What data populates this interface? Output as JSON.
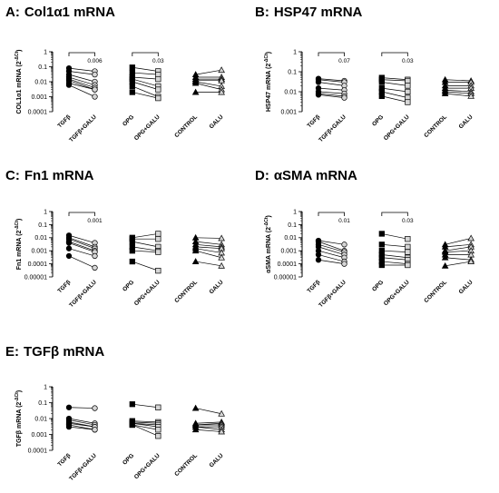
{
  "chart_data": [
    {
      "type": "scatter",
      "letter": "A:",
      "title": "Col1α1 mRNA",
      "ylabel": "COL1α1 mRNA (2^-ΔCt)",
      "ylabel_main": "COL1α1 mRNA (2",
      "ylabel_sup": "-ΔCt",
      "ylabel_tail": ")",
      "yscale": "log",
      "ylim": [
        0.0001,
        1
      ],
      "yticks": [
        {
          "value": 1,
          "label": "1"
        },
        {
          "value": 0.1,
          "label": "0.1"
        },
        {
          "value": 0.01,
          "label": "0.01"
        },
        {
          "value": 0.001,
          "label": "0.001"
        },
        {
          "value": 0.0001,
          "label": "0.0001"
        }
      ],
      "categories": [
        "TGFβ",
        "TGFβ+GALU",
        "OPG",
        "OPG+GALU",
        "CONTROL",
        "GALU"
      ],
      "pairs": [
        {
          "left": "TGFβ",
          "right": "TGFβ+GALU",
          "marker": "circle",
          "left_values": [
            0.08,
            0.05,
            0.03,
            0.02,
            0.015,
            0.012,
            0.008,
            0.006
          ],
          "right_values": [
            0.05,
            0.03,
            0.01,
            0.006,
            0.004,
            0.003,
            0.003,
            0.001
          ]
        },
        {
          "left": "OPG",
          "right": "OPG+GALU",
          "marker": "square",
          "left_values": [
            0.09,
            0.04,
            0.02,
            0.015,
            0.01,
            0.005,
            0.002
          ],
          "right_values": [
            0.05,
            0.03,
            0.015,
            0.005,
            0.003,
            0.001,
            0.0008
          ]
        },
        {
          "left": "CONTROL",
          "right": "GALU",
          "marker": "triangle",
          "left_values": [
            0.03,
            0.02,
            0.015,
            0.012,
            0.01,
            0.008,
            0.002
          ],
          "right_values": [
            0.06,
            0.02,
            0.015,
            0.012,
            0.005,
            0.003,
            0.002
          ]
        }
      ],
      "brackets": [
        {
          "from": "TGFβ",
          "to": "TGFβ+GALU",
          "label": "0.006"
        },
        {
          "from": "OPG",
          "to": "OPG+GALU",
          "label": "0.03"
        }
      ]
    },
    {
      "type": "scatter",
      "letter": "B:",
      "title": "HSP47 mRNA",
      "ylabel": "HSP47 mRNA (2^-ΔCt)",
      "ylabel_main": "HSP47 mRNA (2",
      "ylabel_sup": "-ΔCt",
      "ylabel_tail": ")",
      "yscale": "log",
      "ylim": [
        0.001,
        1
      ],
      "yticks": [
        {
          "value": 1,
          "label": "1"
        },
        {
          "value": 0.1,
          "label": "0.1"
        },
        {
          "value": 0.01,
          "label": "0.01"
        },
        {
          "value": 0.001,
          "label": "0.001"
        }
      ],
      "categories": [
        "TGFβ",
        "TGFβ+GALU",
        "OPG",
        "OPG+GALU",
        "CONTROL",
        "GALU"
      ],
      "pairs": [
        {
          "left": "TGFβ",
          "right": "TGFβ+GALU",
          "marker": "circle",
          "left_values": [
            0.045,
            0.04,
            0.03,
            0.015,
            0.01,
            0.008,
            0.007
          ],
          "right_values": [
            0.035,
            0.03,
            0.02,
            0.012,
            0.008,
            0.006,
            0.005
          ]
        },
        {
          "left": "OPG",
          "right": "OPG+GALU",
          "marker": "square",
          "left_values": [
            0.05,
            0.04,
            0.03,
            0.015,
            0.01,
            0.006
          ],
          "right_values": [
            0.04,
            0.035,
            0.02,
            0.01,
            0.005,
            0.003
          ]
        },
        {
          "left": "CONTROL",
          "right": "GALU",
          "marker": "triangle",
          "left_values": [
            0.04,
            0.03,
            0.02,
            0.015,
            0.012,
            0.01,
            0.008
          ],
          "right_values": [
            0.035,
            0.03,
            0.02,
            0.015,
            0.01,
            0.008,
            0.006
          ]
        }
      ],
      "brackets": [
        {
          "from": "TGFβ",
          "to": "TGFβ+GALU",
          "label": "0.07"
        },
        {
          "from": "OPG",
          "to": "OPG+GALU",
          "label": "0.03"
        }
      ]
    },
    {
      "type": "scatter",
      "letter": "C:",
      "title": "Fn1 mRNA",
      "ylabel": "Fn1 mRNA (2^-ΔCt)",
      "ylabel_main": "Fn1 mRNA (2",
      "ylabel_sup": "-ΔCt",
      "ylabel_tail": ")",
      "yscale": "log",
      "ylim": [
        1e-05,
        1
      ],
      "yticks": [
        {
          "value": 1,
          "label": "1"
        },
        {
          "value": 0.1,
          "label": "0.1"
        },
        {
          "value": 0.01,
          "label": "0.01"
        },
        {
          "value": 0.001,
          "label": "0.001"
        },
        {
          "value": 0.0001,
          "label": "0.0001"
        },
        {
          "value": 1e-05,
          "label": "0.00001"
        }
      ],
      "categories": [
        "TGFβ",
        "TGFβ+GALU",
        "OPG",
        "OPG+GALU",
        "CONTROL",
        "GALU"
      ],
      "pairs": [
        {
          "left": "TGFβ",
          "right": "TGFβ+GALU",
          "marker": "circle",
          "left_values": [
            0.015,
            0.01,
            0.008,
            0.005,
            0.004,
            0.0015,
            0.0004
          ],
          "right_values": [
            0.004,
            0.002,
            0.0015,
            0.001,
            0.0008,
            0.0004,
            5e-05
          ]
        },
        {
          "left": "OPG",
          "right": "OPG+GALU",
          "marker": "square",
          "left_values": [
            0.01,
            0.008,
            0.005,
            0.002,
            0.001,
            0.00015
          ],
          "right_values": [
            0.02,
            0.008,
            0.002,
            0.001,
            0.0008,
            3e-05
          ]
        },
        {
          "left": "CONTROL",
          "right": "GALU",
          "marker": "triangle",
          "left_values": [
            0.01,
            0.005,
            0.003,
            0.002,
            0.0015,
            0.001,
            0.00015
          ],
          "right_values": [
            0.009,
            0.003,
            0.002,
            0.0015,
            0.0007,
            0.0003,
            7e-05
          ]
        }
      ],
      "brackets": [
        {
          "from": "TGFβ",
          "to": "TGFβ+GALU",
          "label": "0.001"
        }
      ]
    },
    {
      "type": "scatter",
      "letter": "D:",
      "title": "αSMA mRNA",
      "ylabel": "αSMA mRNA (2^-ΔCt)",
      "ylabel_main": "αSMA mRNA (2",
      "ylabel_sup": "-ΔCt",
      "ylabel_tail": ")",
      "yscale": "log",
      "ylim": [
        1e-05,
        1
      ],
      "yticks": [
        {
          "value": 1,
          "label": "1"
        },
        {
          "value": 0.1,
          "label": "0.1"
        },
        {
          "value": 0.01,
          "label": "0.01"
        },
        {
          "value": 0.001,
          "label": "0.001"
        },
        {
          "value": 0.0001,
          "label": "0.0001"
        },
        {
          "value": 1e-05,
          "label": "0.00001"
        }
      ],
      "categories": [
        "TGFβ",
        "TGFβ+GALU",
        "OPG",
        "OPG+GALU",
        "CONTROL",
        "GALU"
      ],
      "pairs": [
        {
          "left": "TGFβ",
          "right": "TGFβ+GALU",
          "marker": "circle",
          "left_values": [
            0.006,
            0.005,
            0.003,
            0.002,
            0.001,
            0.0005,
            0.0002
          ],
          "right_values": [
            0.003,
            0.001,
            0.0008,
            0.0005,
            0.0003,
            0.00015,
            0.0001
          ]
        },
        {
          "left": "OPG",
          "right": "OPG+GALU",
          "marker": "square",
          "left_values": [
            0.02,
            0.003,
            0.001,
            0.0005,
            0.0003,
            0.00015,
            8e-05
          ],
          "right_values": [
            0.008,
            0.002,
            0.0008,
            0.0003,
            0.0002,
            0.0001,
            8e-05
          ]
        },
        {
          "left": "CONTROL",
          "right": "GALU",
          "marker": "triangle",
          "left_values": [
            0.003,
            0.002,
            0.001,
            0.0008,
            0.0005,
            0.0003,
            7e-05
          ],
          "right_values": [
            0.009,
            0.003,
            0.002,
            0.001,
            0.0005,
            0.0002,
            0.00015
          ]
        }
      ],
      "brackets": [
        {
          "from": "TGFβ",
          "to": "TGFβ+GALU",
          "label": "0.01"
        },
        {
          "from": "OPG",
          "to": "OPG+GALU",
          "label": "0.03"
        }
      ]
    },
    {
      "type": "scatter",
      "letter": "E:",
      "title": "TGFβ mRNA",
      "ylabel": "TGFβ mRNA (2^-ΔCt)",
      "ylabel_main": "TGFβ mRNA (2",
      "ylabel_sup": "-ΔCt",
      "ylabel_tail": ")",
      "yscale": "log",
      "ylim": [
        0.0001,
        1
      ],
      "yticks": [
        {
          "value": 1,
          "label": "1"
        },
        {
          "value": 0.1,
          "label": "0.1"
        },
        {
          "value": 0.01,
          "label": "0.01"
        },
        {
          "value": 0.001,
          "label": "0.001"
        },
        {
          "value": 0.0001,
          "label": "0.0001"
        }
      ],
      "categories": [
        "TGFβ",
        "TGFβ+GALU",
        "OPG",
        "OPG+GALU",
        "CONTROL",
        "GALU"
      ],
      "pairs": [
        {
          "left": "TGFβ",
          "right": "TGFβ+GALU",
          "marker": "circle",
          "left_values": [
            0.05,
            0.01,
            0.008,
            0.006,
            0.005,
            0.004,
            0.003
          ],
          "right_values": [
            0.045,
            0.005,
            0.004,
            0.003,
            0.003,
            0.002,
            0.002
          ]
        },
        {
          "left": "OPG",
          "right": "OPG+GALU",
          "marker": "square",
          "left_values": [
            0.08,
            0.007,
            0.006,
            0.005,
            0.005,
            0.004,
            0.004
          ],
          "right_values": [
            0.05,
            0.006,
            0.005,
            0.004,
            0.003,
            0.002,
            0.0008
          ]
        },
        {
          "left": "CONTROL",
          "right": "GALU",
          "marker": "triangle",
          "left_values": [
            0.045,
            0.005,
            0.004,
            0.004,
            0.003,
            0.003,
            0.002
          ],
          "right_values": [
            0.02,
            0.006,
            0.005,
            0.004,
            0.003,
            0.002,
            0.0015
          ]
        }
      ],
      "brackets": []
    }
  ]
}
